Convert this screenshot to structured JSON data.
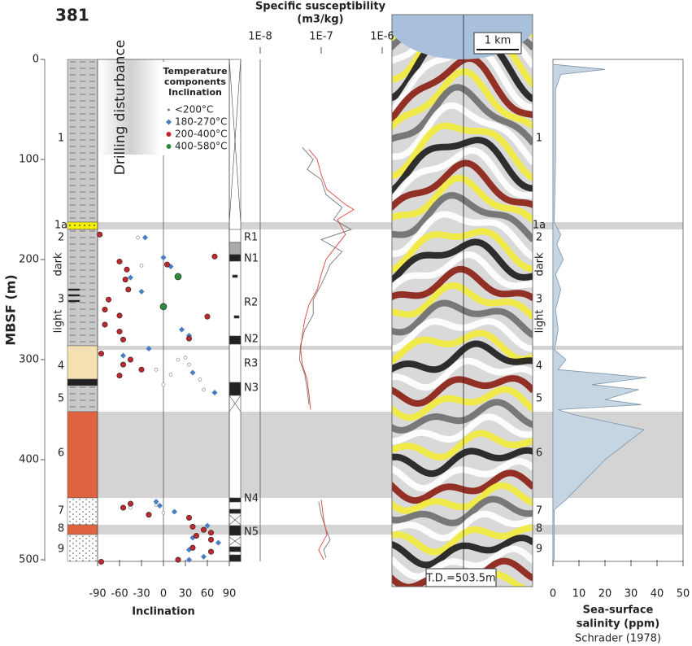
{
  "title": "381",
  "lithology": {
    "units": [
      "1",
      "1a",
      "2",
      "3",
      "4",
      "5",
      "6",
      "7",
      "8",
      "9"
    ],
    "dark": "dark",
    "light": "light"
  },
  "polarity": [
    "R1",
    "N1",
    "R2",
    "N2",
    "R3",
    "N3",
    "N4",
    "N5"
  ],
  "seismic": {
    "scale": "1 km",
    "td": "T.D.=503.5m"
  },
  "chart_data": [
    {
      "type": "scatter",
      "depth_label": "MBSF (m)",
      "value_label": "Inclination",
      "annotation": "Drilling disturbance",
      "legend_title": [
        "Temperature",
        "components",
        "Inclination"
      ],
      "xlim": [
        0,
        500
      ],
      "xticks": [
        0,
        100,
        200,
        300,
        400,
        500
      ],
      "ylim": [
        -90,
        90
      ],
      "yticks": [
        -90,
        -60,
        -30,
        0,
        30,
        60,
        90
      ],
      "series": [
        {
          "name": "<200°C",
          "color": "#777777",
          "x": [
            178,
            206,
            298,
            300,
            305,
            310,
            315,
            320,
            325,
            330,
            445,
            448,
            453,
            456
          ],
          "values": [
            -35,
            -30,
            30,
            20,
            35,
            -10,
            10,
            50,
            0,
            55,
            -10,
            -45,
            0,
            -20
          ]
        },
        {
          "name": "180-270°C",
          "color": "#4a7ec0",
          "x": [
            178,
            198,
            207,
            218,
            232,
            270,
            276,
            289,
            296,
            313,
            333,
            442,
            446,
            452,
            466,
            478,
            483,
            490,
            497,
            500
          ],
          "values": [
            -25,
            0,
            10,
            -45,
            -30,
            25,
            35,
            -20,
            -55,
            40,
            70,
            -10,
            -5,
            15,
            60,
            40,
            75,
            35,
            55,
            35
          ]
        },
        {
          "name": "200-400°C",
          "color": "#c0282d",
          "x": [
            175,
            197,
            202,
            205,
            210,
            220,
            230,
            240,
            250,
            256,
            257,
            265,
            272,
            280,
            279,
            294,
            300,
            305,
            310,
            316,
            444,
            448,
            455,
            458,
            467,
            470,
            473,
            476,
            480,
            488,
            492,
            500,
            502
          ],
          "values": [
            -87,
            70,
            -60,
            5,
            -50,
            -52,
            -48,
            -75,
            -80,
            -60,
            60,
            -80,
            -60,
            -55,
            35,
            -85,
            -45,
            -55,
            -30,
            -60,
            -45,
            -55,
            -20,
            35,
            40,
            55,
            65,
            45,
            65,
            40,
            65,
            20,
            -85
          ]
        },
        {
          "name": "400-580°C",
          "color": "#2e8b3e",
          "x": [
            217,
            247
          ],
          "values": [
            20,
            0
          ]
        }
      ]
    },
    {
      "type": "line",
      "title": [
        "Specific susceptibility",
        "(m3/kg)"
      ],
      "log_scale": true,
      "xlim": [
        0,
        500
      ],
      "ylim": [
        1e-08,
        1e-06
      ],
      "yticks": [
        {
          "value": 1e-08,
          "label": "1E-8"
        },
        {
          "value": 1e-07,
          "label": "1E-7"
        },
        {
          "value": 1e-06,
          "label": "1E-6"
        }
      ],
      "series": [
        {
          "color": "#777777",
          "x": [
            88,
            100,
            110,
            120,
            135,
            148,
            160,
            170,
            180,
            192,
            205,
            215,
            225,
            240,
            255,
            270,
            285,
            300,
            315,
            330,
            345,
            400,
            442,
            455,
            470,
            480,
            490,
            498
          ],
          "values": [
            4.9e-08,
            7.4e-08,
            5.9e-08,
            1e-07,
            1.2e-07,
            2.2e-07,
            1.6e-07,
            3.1e-07,
            1e-07,
            2.2e-07,
            1.4e-07,
            1.2e-07,
            1e-07,
            7.4e-08,
            7.4e-08,
            5.4e-08,
            4.6e-08,
            4.4e-08,
            5.4e-08,
            5.9e-08,
            6.3e-08,
            null,
            9.1e-08,
            1e-07,
            1.2e-07,
            1.4e-07,
            1.1e-07,
            1.2e-07
          ]
        },
        {
          "color": "#e0433f",
          "x": [
            90,
            100,
            115,
            130,
            145,
            150,
            160,
            175,
            190,
            200,
            215,
            230,
            245,
            260,
            275,
            290,
            305,
            320,
            335,
            350,
            400,
            440,
            460,
            475,
            490,
            500
          ],
          "values": [
            6.3e-08,
            8.6e-08,
            1e-07,
            1.24e-07,
            2.5e-07,
            3.4e-07,
            1.85e-07,
            2.5e-07,
            1.6e-07,
            1.2e-07,
            1e-07,
            8.6e-08,
            6.3e-08,
            5.4e-08,
            4.9e-08,
            4.6e-08,
            4.9e-08,
            5.9e-08,
            6.3e-08,
            6.7e-08,
            null,
            1e-07,
            1.1e-07,
            1.24e-07,
            9.1e-08,
            1.1e-07
          ]
        }
      ]
    },
    {
      "type": "area",
      "xlabel": [
        "Sea-surface",
        "salinity (ppm)"
      ],
      "source": "Schrader (1978)",
      "xlim": [
        0,
        500
      ],
      "ylim": [
        0,
        50
      ],
      "yticks": [
        0,
        10,
        20,
        30,
        40,
        50
      ],
      "series": [
        {
          "color": "#c5d5e2",
          "x": [
            5,
            10,
            15,
            30,
            100,
            163,
            175,
            185,
            200,
            215,
            230,
            250,
            270,
            285,
            290,
            300,
            310,
            318,
            325,
            330,
            340,
            345,
            350,
            355,
            370,
            400,
            440,
            450,
            500
          ],
          "values": [
            0.5,
            20,
            3,
            1,
            1,
            0.5,
            3,
            1.5,
            4,
            1,
            3,
            1,
            2,
            1,
            0.5,
            5,
            2,
            36,
            15,
            33,
            20,
            34,
            2,
            8,
            35,
            20,
            5,
            0.5,
            0.5
          ]
        }
      ]
    }
  ]
}
